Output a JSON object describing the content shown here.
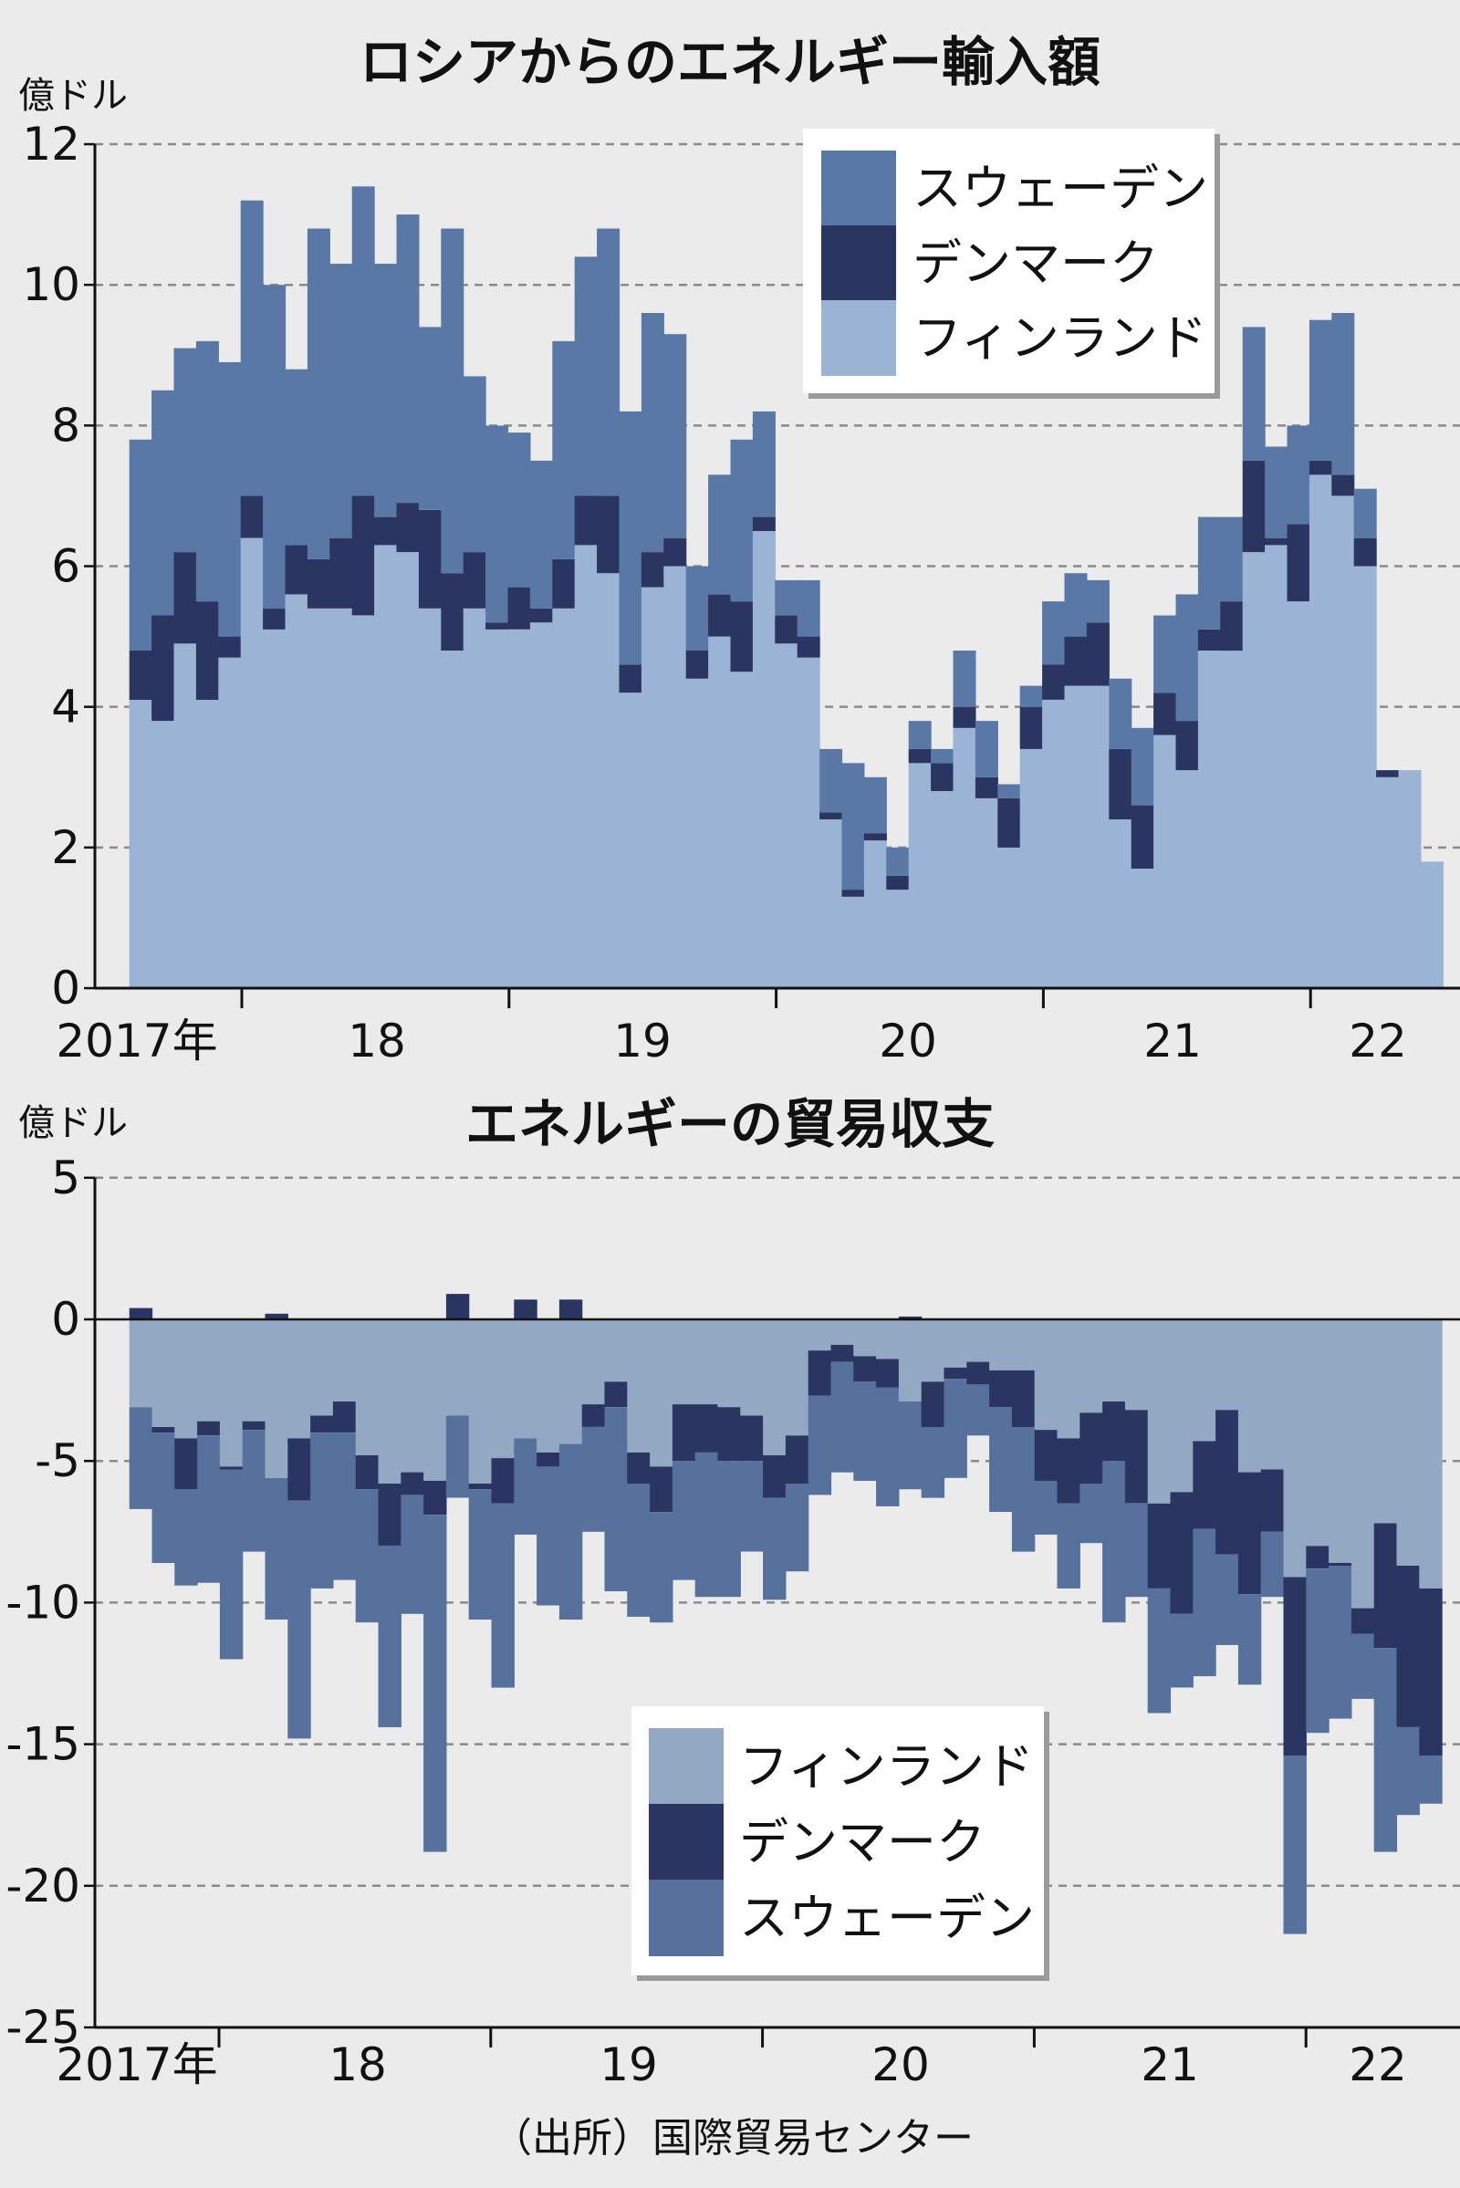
{
  "chart_data": [
    {
      "type": "bar",
      "stacked": true,
      "title": "ロシアからのエネルギー輸入額",
      "unit_label": "億ドル",
      "ylim": [
        0,
        12
      ],
      "yticks": [
        0,
        2,
        4,
        6,
        8,
        10,
        12
      ],
      "xtick_labels": [
        "2017年",
        "18",
        "19",
        "20",
        "21",
        "22"
      ],
      "grid": true,
      "legend_placement": "top-right",
      "legend_order": [
        "sweden",
        "denmark",
        "finland"
      ],
      "x": [
        "2017-08",
        "2017-09",
        "2017-10",
        "2017-11",
        "2017-12",
        "2018-01",
        "2018-02",
        "2018-03",
        "2018-04",
        "2018-05",
        "2018-06",
        "2018-07",
        "2018-08",
        "2018-09",
        "2018-10",
        "2018-11",
        "2018-12",
        "2019-01",
        "2019-02",
        "2019-03",
        "2019-04",
        "2019-05",
        "2019-06",
        "2019-07",
        "2019-08",
        "2019-09",
        "2019-10",
        "2019-11",
        "2019-12",
        "2020-01",
        "2020-02",
        "2020-03",
        "2020-04",
        "2020-05",
        "2020-06",
        "2020-07",
        "2020-08",
        "2020-09",
        "2020-10",
        "2020-11",
        "2020-12",
        "2021-01",
        "2021-02",
        "2021-03",
        "2021-04",
        "2021-05",
        "2021-06",
        "2021-07",
        "2021-08",
        "2021-09",
        "2021-10",
        "2021-11",
        "2021-12",
        "2022-01",
        "2022-02",
        "2022-03",
        "2022-04",
        "2022-05",
        "2022-06"
      ],
      "series": {
        "finland": {
          "name": "フィンランド",
          "color": "#9bb3d5",
          "values": [
            4.1,
            3.8,
            4.9,
            4.1,
            4.7,
            6.4,
            5.1,
            5.6,
            5.4,
            5.4,
            5.3,
            6.3,
            6.2,
            5.4,
            4.8,
            5.4,
            5.1,
            5.1,
            5.2,
            5.4,
            6.3,
            5.9,
            4.2,
            5.7,
            6.0,
            4.4,
            5.0,
            4.5,
            6.5,
            4.9,
            4.7,
            2.4,
            1.3,
            2.1,
            1.4,
            3.2,
            2.8,
            3.7,
            2.7,
            2.0,
            3.4,
            4.1,
            4.3,
            4.3,
            2.4,
            1.7,
            3.6,
            3.1,
            4.8,
            4.8,
            6.2,
            6.3,
            5.5,
            7.3,
            7.0,
            6.0,
            3.0,
            3.1,
            1.8
          ]
        },
        "denmark": {
          "name": "デンマーク",
          "color": "#2b3561",
          "values": [
            0.7,
            1.5,
            1.3,
            1.4,
            0.3,
            0.6,
            0.3,
            0.7,
            0.7,
            1.0,
            1.7,
            0.4,
            0.7,
            1.4,
            1.1,
            0.8,
            0.1,
            0.6,
            0.2,
            0.7,
            0.7,
            1.1,
            0.4,
            0.5,
            0.4,
            0.4,
            0.6,
            1.0,
            0.2,
            0.4,
            0.3,
            0.1,
            0.1,
            0.1,
            0.2,
            0.2,
            0.4,
            0.3,
            0.3,
            0.7,
            0.6,
            0.5,
            0.7,
            0.9,
            1.0,
            0.9,
            0.6,
            0.7,
            0.3,
            0.7,
            1.3,
            0.1,
            1.1,
            0.2,
            0.3,
            0.4,
            0.1,
            0,
            0
          ]
        },
        "sweden": {
          "name": "スウェーデン",
          "color": "#5a78a6",
          "values": [
            3.0,
            3.2,
            2.9,
            3.7,
            3.9,
            4.2,
            4.6,
            2.5,
            4.7,
            3.9,
            4.4,
            3.6,
            4.1,
            2.6,
            4.9,
            2.5,
            2.8,
            2.2,
            2.1,
            3.1,
            3.4,
            3.8,
            3.6,
            3.4,
            2.9,
            1.2,
            1.7,
            2.3,
            1.5,
            0.5,
            0.8,
            0.9,
            1.8,
            0.8,
            0.4,
            0.4,
            0.2,
            0.8,
            0.8,
            0.2,
            0.3,
            0.9,
            0.9,
            0.6,
            1.0,
            1.1,
            1.1,
            1.8,
            1.6,
            1.2,
            1.9,
            1.3,
            1.4,
            2.0,
            2.3,
            0.7,
            0,
            0,
            0
          ]
        }
      }
    },
    {
      "type": "bar",
      "stacked": true,
      "title": "エネルギーの貿易収支",
      "unit_label": "億ドル",
      "ylim": [
        -25,
        5
      ],
      "yticks": [
        5,
        0,
        -5,
        -10,
        -15,
        -20,
        -25
      ],
      "xtick_labels": [
        "2017年",
        "18",
        "19",
        "20",
        "21",
        "22"
      ],
      "grid": true,
      "legend_placement": "bottom-center",
      "legend_order": [
        "finland",
        "denmark",
        "sweden"
      ],
      "x": [
        "2017-09",
        "2017-10",
        "2017-11",
        "2017-12",
        "2018-01",
        "2018-02",
        "2018-03",
        "2018-04",
        "2018-05",
        "2018-06",
        "2018-07",
        "2018-08",
        "2018-09",
        "2018-10",
        "2018-11",
        "2018-12",
        "2019-01",
        "2019-02",
        "2019-03",
        "2019-04",
        "2019-05",
        "2019-06",
        "2019-07",
        "2019-08",
        "2019-09",
        "2019-10",
        "2019-11",
        "2019-12",
        "2020-01",
        "2020-02",
        "2020-03",
        "2020-04",
        "2020-05",
        "2020-06",
        "2020-07",
        "2020-08",
        "2020-09",
        "2020-10",
        "2020-11",
        "2020-12",
        "2021-01",
        "2021-02",
        "2021-03",
        "2021-04",
        "2021-05",
        "2021-06",
        "2021-07",
        "2021-08",
        "2021-09",
        "2021-10",
        "2021-11",
        "2021-12",
        "2022-01",
        "2022-02",
        "2022-03",
        "2022-04",
        "2022-05",
        "2022-06"
      ],
      "series": {
        "finland": {
          "name": "フィンランド",
          "color": "#93a8c3",
          "values": [
            -3.1,
            -3.8,
            -4.2,
            -3.6,
            -5.2,
            -3.6,
            -5.6,
            -4.2,
            -3.4,
            -2.9,
            -4.8,
            -5.8,
            -5.4,
            -5.7,
            -3.4,
            -5.8,
            -4.9,
            -4.2,
            -4.7,
            -4.4,
            -3.0,
            -2.2,
            -4.7,
            -5.2,
            -3.0,
            -3.0,
            -3.1,
            -3.4,
            -4.8,
            -4.1,
            -1.1,
            -0.9,
            -1.3,
            -1.4,
            -2.9,
            -2.2,
            -1.7,
            -1.5,
            -1.8,
            -1.8,
            -3.9,
            -4.2,
            -3.3,
            -2.9,
            -3.2,
            -6.5,
            -6.1,
            -4.3,
            -3.2,
            -5.4,
            -5.3,
            -9.1,
            -8.0,
            -8.6,
            -10.2,
            -7.2,
            -8.7,
            -9.5
          ]
        },
        "denmark": {
          "name": "デンマーク",
          "color": "#2b3561",
          "values": [
            0.4,
            -0.2,
            -1.8,
            -0.5,
            -0.1,
            -0.3,
            0.2,
            -2.2,
            -0.6,
            -1.1,
            -1.2,
            -2.2,
            -0.8,
            -1.2,
            0.9,
            -0.2,
            -1.6,
            0.7,
            -0.5,
            0.7,
            -0.8,
            -0.9,
            -1.1,
            -1.6,
            -2.0,
            -1.7,
            -1.9,
            -1.6,
            -1.5,
            -1.7,
            -1.6,
            -0.6,
            -0.9,
            -1.0,
            0.1,
            -1.6,
            -0.4,
            -0.8,
            -1.3,
            -2.0,
            -1.8,
            -2.3,
            -2.5,
            -2.1,
            -3.3,
            -3.0,
            -4.3,
            -3.1,
            -5.1,
            -4.3,
            -2.2,
            -6.3,
            -0.8,
            -0.1,
            -0.9,
            -4.4,
            -5.7,
            -5.9
          ]
        },
        "sweden": {
          "name": "スウェーデン",
          "color": "#56719c",
          "values": [
            -3.6,
            -4.6,
            -3.4,
            -5.2,
            -6.7,
            -4.3,
            -5.0,
            -8.4,
            -5.5,
            -5.2,
            -4.7,
            -6.4,
            -4.2,
            -11.9,
            -2.9,
            -4.6,
            -6.5,
            -3.4,
            -4.9,
            -6.2,
            -3.7,
            -6.5,
            -4.7,
            -3.9,
            -4.2,
            -5.1,
            -4.8,
            -3.2,
            -3.6,
            -3.1,
            -3.5,
            -3.9,
            -3.5,
            -4.2,
            -3.1,
            -2.5,
            -3.5,
            -1.8,
            -3.7,
            -4.4,
            -1.9,
            -3.0,
            -2.1,
            -5.7,
            -3.3,
            -4.4,
            -2.6,
            -5.2,
            -3.2,
            -3.2,
            -2.3,
            -6.3,
            -5.8,
            -5.4,
            -2.3,
            -7.2,
            -3.1,
            -1.7
          ]
        }
      }
    }
  ],
  "source": "（出所）国際貿易センター"
}
